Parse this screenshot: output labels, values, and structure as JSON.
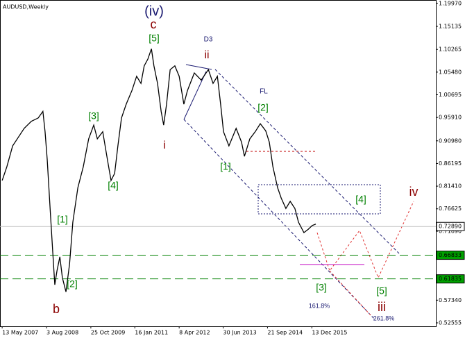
{
  "chart_data": {
    "type": "line",
    "title": "AUDUSD,Weekly",
    "x": [
      2007.36,
      2007.49,
      2007.65,
      2007.78,
      2007.97,
      2008.17,
      2008.36,
      2008.49,
      2008.55,
      2008.61,
      2008.69,
      2008.76,
      2008.82,
      2008.88,
      2008.96,
      2009.03,
      2009.13,
      2009.23,
      2009.32,
      2009.46,
      2009.61,
      2009.76,
      2009.9,
      2010.0,
      2010.15,
      2010.28,
      2010.38,
      2010.48,
      2010.57,
      2010.67,
      2010.8,
      2010.96,
      2011.09,
      2011.21,
      2011.3,
      2011.4,
      2011.5,
      2011.57,
      2011.67,
      2011.77,
      2011.84,
      2011.92,
      2012.02,
      2012.15,
      2012.27,
      2012.4,
      2012.5,
      2012.69,
      2012.88,
      2013.08,
      2013.21,
      2013.33,
      2013.42,
      2013.5,
      2013.65,
      2013.85,
      2014.0,
      2014.08,
      2014.23,
      2014.38,
      2014.52,
      2014.67,
      2014.77,
      2014.87,
      2015.0,
      2015.1,
      2015.23,
      2015.35,
      2015.48,
      2015.58,
      2015.73,
      2015.85,
      2015.96,
      2016.06
    ],
    "series": [
      {
        "color": "#000000",
        "values": [
          0.826,
          0.855,
          0.899,
          0.914,
          0.936,
          0.951,
          0.958,
          0.972,
          0.929,
          0.87,
          0.767,
          0.679,
          0.606,
          0.635,
          0.665,
          0.621,
          0.591,
          0.65,
          0.738,
          0.811,
          0.855,
          0.914,
          0.943,
          0.914,
          0.929,
          0.87,
          0.826,
          0.841,
          0.899,
          0.958,
          0.987,
          1.016,
          1.046,
          1.031,
          1.068,
          1.082,
          1.104,
          1.068,
          1.031,
          0.972,
          0.943,
          0.987,
          1.06,
          1.068,
          1.046,
          0.987,
          1.016,
          1.053,
          1.038,
          1.06,
          1.031,
          1.046,
          0.987,
          0.929,
          0.899,
          0.936,
          0.907,
          0.877,
          0.914,
          0.929,
          0.946,
          0.931,
          0.907,
          0.855,
          0.811,
          0.789,
          0.767,
          0.782,
          0.767,
          0.738,
          0.716,
          0.723,
          0.731,
          0.734
        ]
      }
    ],
    "xlim": [
      2007.3,
      2019.39
    ],
    "xticks": [
      {
        "value": 2007.36,
        "label": "13 May 2007"
      },
      {
        "value": 2008.59,
        "label": "3 Aug 2008"
      },
      {
        "value": 2009.82,
        "label": "25 Oct 2009"
      },
      {
        "value": 2011.04,
        "label": "16 Jan 2011"
      },
      {
        "value": 2012.27,
        "label": "8 Apr 2012"
      },
      {
        "value": 2013.49,
        "label": "30 Jun 2013"
      },
      {
        "value": 2014.72,
        "label": "21 Sep 2014"
      },
      {
        "value": 2015.95,
        "label": "13 Dec 2015"
      }
    ],
    "ylim": [
      0.5182,
      1.207
    ],
    "yticks": [
      {
        "value": 1.1997,
        "label": "1.19970"
      },
      {
        "value": 1.15135,
        "label": "1.15135"
      },
      {
        "value": 1.10265,
        "label": "1.10265"
      },
      {
        "value": 1.0548,
        "label": "1.05480"
      },
      {
        "value": 1.00695,
        "label": "1.00695"
      },
      {
        "value": 0.9591,
        "label": "0.95910"
      },
      {
        "value": 0.9098,
        "label": "0.90980"
      },
      {
        "value": 0.86195,
        "label": "0.86195"
      },
      {
        "value": 0.8141,
        "label": "0.81410"
      },
      {
        "value": 0.76625,
        "label": "0.76625"
      },
      {
        "value": 0.7189,
        "label": "0.71890"
      },
      {
        "value": 0.5734,
        "label": "0.57340"
      },
      {
        "value": 0.52555,
        "label": "0.52555"
      }
    ],
    "hlines": [
      {
        "value": 0.7289,
        "label": "0.72890",
        "color": "#c0c0c0",
        "box": "#ffffff"
      },
      {
        "value": 0.66833,
        "label": "0.66833",
        "color": "#008000",
        "box": "#00a000"
      },
      {
        "value": 0.61835,
        "label": "0.61835",
        "color": "#008000",
        "box": "#00a000"
      }
    ],
    "annotations": [
      {
        "text": "(iv)",
        "color": "#191970"
      },
      {
        "text": "c",
        "color": "#8b0000"
      },
      {
        "text": "[5]",
        "color": "#008000"
      },
      {
        "text": "D3",
        "color": "#191970"
      },
      {
        "text": "ii",
        "color": "#8b0000"
      },
      {
        "text": "FL",
        "color": "#191970"
      },
      {
        "text": "[2]",
        "color": "#008000"
      },
      {
        "text": "[3]",
        "color": "#008000"
      },
      {
        "text": "i",
        "color": "#8b0000"
      },
      {
        "text": "[1]",
        "color": "#008000"
      },
      {
        "text": "[4]",
        "color": "#008000"
      },
      {
        "text": "[1]",
        "color": "#008000"
      },
      {
        "text": "[2]",
        "color": "#008000"
      },
      {
        "text": "b",
        "color": "#8b0000"
      },
      {
        "text": "[4]",
        "color": "#008000"
      },
      {
        "text": "iv",
        "color": "#8b0000"
      },
      {
        "text": "[3]",
        "color": "#008000"
      },
      {
        "text": "161.8%",
        "color": "#191970"
      },
      {
        "text": "[5]",
        "color": "#008000"
      },
      {
        "text": "iii",
        "color": "#8b0000"
      },
      {
        "text": "261.8%",
        "color": "#191970"
      }
    ]
  }
}
